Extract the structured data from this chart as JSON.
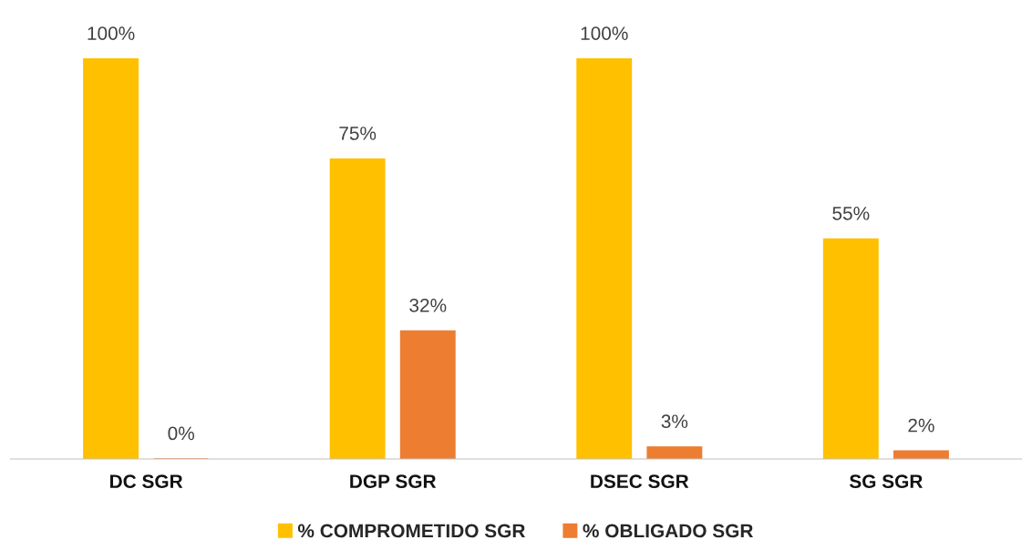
{
  "chart_data": {
    "type": "bar",
    "categories": [
      "DC SGR",
      "DGP SGR",
      "DSEC SGR",
      "SG SGR"
    ],
    "series": [
      {
        "name": "% COMPROMETIDO SGR",
        "color": "#ffc000",
        "values": [
          100,
          75,
          100,
          55
        ],
        "value_labels": [
          "100%",
          "75%",
          "100%",
          "55%"
        ]
      },
      {
        "name": "% OBLIGADO SGR",
        "color": "#ed7d31",
        "values": [
          0,
          32,
          3,
          2
        ],
        "value_labels": [
          "0%",
          "32%",
          "3%",
          "2%"
        ]
      }
    ],
    "legend": "bottom",
    "grid": false,
    "tick_labels": "x"
  }
}
